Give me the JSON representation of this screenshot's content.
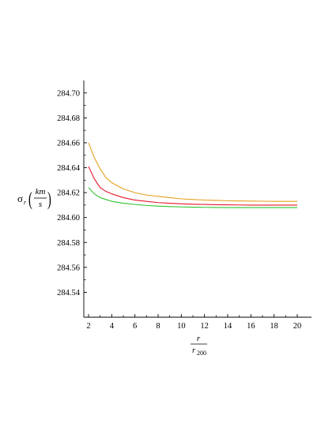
{
  "chart_data": {
    "type": "line",
    "xlabel": {
      "numerator": "r",
      "denominator_base": "r",
      "denominator_sub": "200"
    },
    "ylabel": {
      "symbol": "σ",
      "sub": "r",
      "open_paren": "(",
      "unit_numerator": "km",
      "unit_denominator": "s",
      "close_paren": ")"
    },
    "xlim": [
      2,
      20
    ],
    "ylim": [
      284.52,
      284.71
    ],
    "x_ticks": [
      "2",
      "4",
      "6",
      "8",
      "10",
      "12",
      "14",
      "16",
      "18",
      "20"
    ],
    "y_ticks": [
      "284.54",
      "284.56",
      "284.58",
      "284.60",
      "284.62",
      "284.64",
      "284.66",
      "284.68",
      "284.70"
    ],
    "grid": false,
    "x": [
      2,
      2.5,
      3,
      3.5,
      4,
      5,
      6,
      7,
      8,
      9,
      10,
      11,
      12,
      13,
      14,
      15,
      16,
      17,
      18,
      19,
      20
    ],
    "series": [
      {
        "color": "#e6a020",
        "values": [
          284.66,
          284.648,
          284.639,
          284.632,
          284.628,
          284.623,
          284.62,
          284.618,
          284.617,
          284.616,
          284.615,
          284.6145,
          284.614,
          284.6138,
          284.6135,
          284.6133,
          284.6132,
          284.6131,
          284.613,
          284.613,
          284.613
        ]
      },
      {
        "color": "#e8162b",
        "values": [
          284.641,
          284.631,
          284.624,
          284.621,
          284.619,
          284.616,
          284.614,
          284.613,
          284.612,
          284.6115,
          284.611,
          284.6107,
          284.6105,
          284.6103,
          284.6102,
          284.6101,
          284.61,
          284.61,
          284.61,
          284.61,
          284.61
        ]
      },
      {
        "color": "#2ec32e",
        "values": [
          284.624,
          284.619,
          284.616,
          284.6145,
          284.613,
          284.6115,
          284.6105,
          284.6097,
          284.6092,
          284.6088,
          284.6085,
          284.6083,
          284.6082,
          284.6081,
          284.608,
          284.608,
          284.608,
          284.608,
          284.608,
          284.608,
          284.608
        ]
      }
    ]
  }
}
